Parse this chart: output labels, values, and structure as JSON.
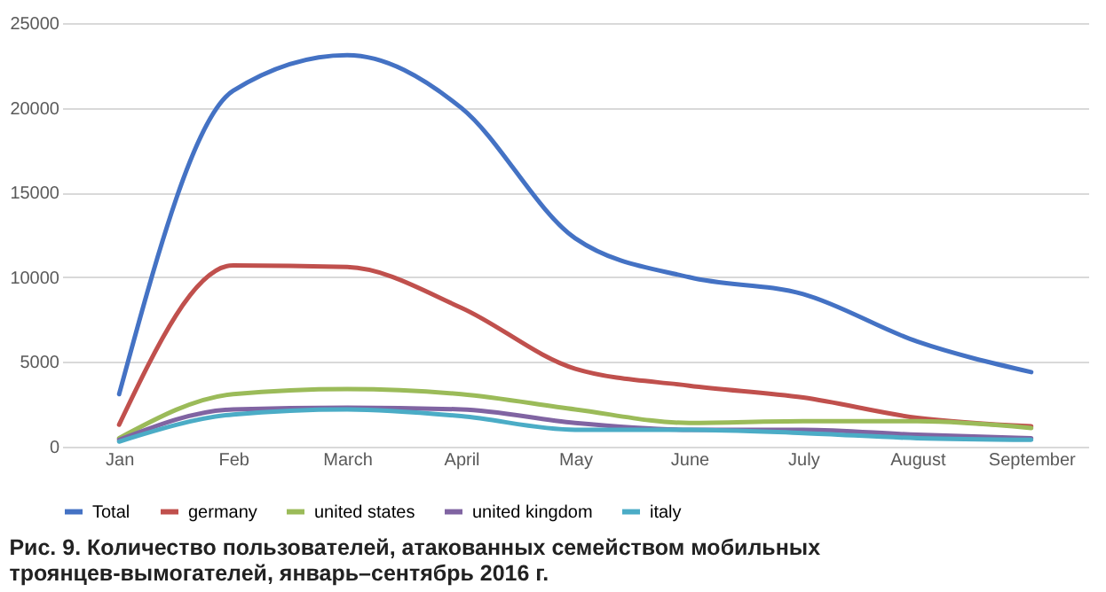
{
  "chart_data": {
    "type": "line",
    "title": "Рис. 9. Количество пользователей, атакованных семейством мобильных троянцев-вымогателей, январь–сентябрь 2016 г.",
    "categories": [
      "Jan",
      "Feb",
      "March",
      "April",
      "May",
      "June",
      "July",
      "August",
      "September"
    ],
    "series": [
      {
        "name": "Total",
        "color": "#4472c4",
        "values": [
          3100,
          21000,
          23100,
          20000,
          12300,
          10000,
          9000,
          6200,
          4400
        ]
      },
      {
        "name": "germany",
        "color": "#c0504d",
        "values": [
          1300,
          10700,
          10600,
          8200,
          4600,
          3600,
          2900,
          1700,
          1200
        ]
      },
      {
        "name": "united states",
        "color": "#9bbb59",
        "values": [
          500,
          3100,
          3400,
          3100,
          2200,
          1400,
          1500,
          1500,
          1100
        ]
      },
      {
        "name": "united kingdom",
        "color": "#8064a2",
        "values": [
          400,
          2200,
          2300,
          2200,
          1400,
          1000,
          1000,
          700,
          500
        ]
      },
      {
        "name": "italy",
        "color": "#4bacc6",
        "values": [
          300,
          1900,
          2200,
          1800,
          1000,
          1000,
          800,
          500,
          400
        ]
      }
    ],
    "ylim": [
      0,
      25000
    ],
    "yticks": [
      0,
      5000,
      10000,
      15000,
      20000,
      25000
    ],
    "grid": "y",
    "legend": "bottom",
    "marker": "none",
    "line_style": "solid"
  }
}
